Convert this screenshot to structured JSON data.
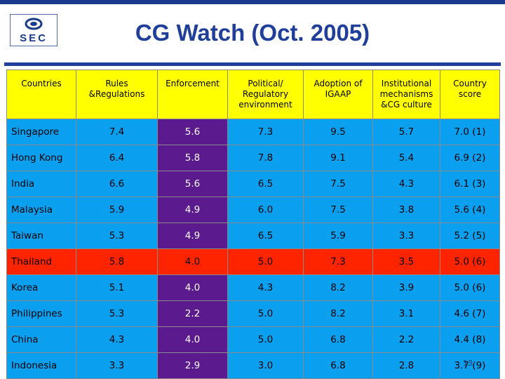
{
  "title": "CG Watch (Oct. 2005)",
  "logo_text": "SEC",
  "headers": [
    "Countries",
    "Rules &Regulations",
    "Enforcement",
    "Political/ Regulatory environment",
    "Adoption of IGAAP",
    "Institutional mechanisms &CG culture",
    "Country score"
  ],
  "rows": [
    {
      "country": "Singapore",
      "rules": "7.4",
      "enforcement": "5.6",
      "political": "7.3",
      "igaap": "9.5",
      "institutional": "5.7",
      "score": "7.0 (1)",
      "highlight": false
    },
    {
      "country": "Hong Kong",
      "rules": "6.4",
      "enforcement": "5.8",
      "political": "7.8",
      "igaap": "9.1",
      "institutional": "5.4",
      "score": "6.9 (2)",
      "highlight": false
    },
    {
      "country": "India",
      "rules": "6.6",
      "enforcement": "5.6",
      "political": "6.5",
      "igaap": "7.5",
      "institutional": "4.3",
      "score": "6.1 (3)",
      "highlight": false
    },
    {
      "country": "Malaysia",
      "rules": "5.9",
      "enforcement": "4.9",
      "political": "6.0",
      "igaap": "7.5",
      "institutional": "3.8",
      "score": "5.6 (4)",
      "highlight": false
    },
    {
      "country": "Taiwan",
      "rules": "5.3",
      "enforcement": "4.9",
      "political": "6.5",
      "igaap": "5.9",
      "institutional": "3.3",
      "score": "5.2 (5)",
      "highlight": false
    },
    {
      "country": "Thailand",
      "rules": "5.8",
      "enforcement": "4.0",
      "political": "5.0",
      "igaap": "7.3",
      "institutional": "3.5",
      "score": "5.0 (6)",
      "highlight": true
    },
    {
      "country": "Korea",
      "rules": "5.1",
      "enforcement": "4.0",
      "political": "4.3",
      "igaap": "8.2",
      "institutional": "3.9",
      "score": "5.0 (6)",
      "highlight": false
    },
    {
      "country": "Philippines",
      "rules": "5.3",
      "enforcement": "2.2",
      "political": "5.0",
      "igaap": "8.2",
      "institutional": "3.1",
      "score": "4.6 (7)",
      "highlight": false
    },
    {
      "country": "China",
      "rules": "4.3",
      "enforcement": "4.0",
      "political": "5.0",
      "igaap": "6.8",
      "institutional": "2.2",
      "score": "4.4 (8)",
      "highlight": false
    },
    {
      "country": "Indonesia",
      "rules": "3.3",
      "enforcement": "2.9",
      "political": "3.0",
      "igaap": "6.8",
      "institutional": "2.8",
      "score": "3.7 (9)",
      "highlight": false
    }
  ],
  "page_number": "13",
  "colors": {
    "title": "#1f3f9a",
    "header_bg": "#ffff00",
    "row_bg": "#0b9ff0",
    "enforcement_bg": "#5b1a8e",
    "highlight_bg": "#ff2400"
  }
}
